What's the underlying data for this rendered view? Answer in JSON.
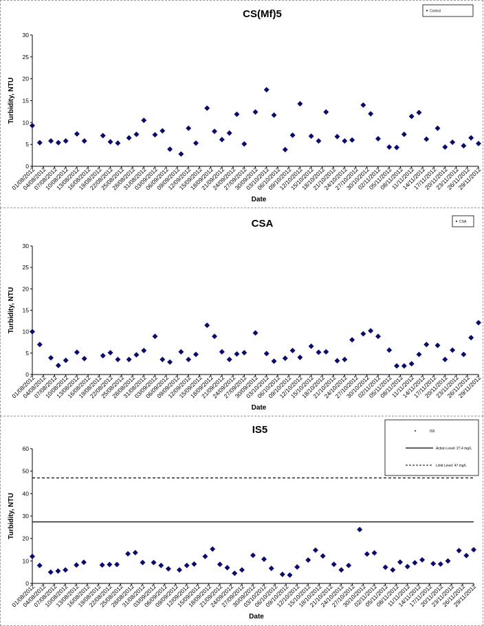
{
  "colors": {
    "marker": "#0b0b6e",
    "axis": "#000000",
    "frame": "#9a9a9a"
  },
  "chart_data": [
    {
      "type": "scatter",
      "title": "CS(Mf)5",
      "xlabel": "Date",
      "ylabel": "Turbidity, NTU",
      "ylim": [
        0,
        30
      ],
      "yticks": [
        0,
        5,
        10,
        15,
        20,
        25,
        30
      ],
      "legend": {
        "position": "top-right",
        "entries": [
          "Control"
        ]
      },
      "x_tick_labels": [
        "01/08/2012",
        "04/08/2012",
        "07/08/2012",
        "10/08/2012",
        "13/08/2012",
        "16/08/2012",
        "19/08/2012",
        "22/08/2012",
        "25/08/2012",
        "28/08/2012",
        "31/08/2012",
        "03/09/2012",
        "06/09/2012",
        "09/09/2012",
        "12/09/2012",
        "15/09/2012",
        "18/09/2012",
        "21/09/2012",
        "24/09/2012",
        "27/09/2012",
        "30/09/2012",
        "03/10/2012",
        "06/10/2012",
        "09/10/2012",
        "12/10/2012",
        "15/10/2012",
        "18/10/2012",
        "21/10/2012",
        "24/10/2012",
        "27/10/2012",
        "30/10/2012",
        "02/11/2012",
        "05/11/2012",
        "08/11/2012",
        "11/11/2012",
        "14/11/2012",
        "17/11/2012",
        "20/11/2012",
        "23/11/2012",
        "26/11/2012",
        "29/11/2012"
      ],
      "series": [
        {
          "name": "Control",
          "x": [
            "01/08/2012",
            "03/08/2012",
            "06/08/2012",
            "08/08/2012",
            "10/08/2012",
            "13/08/2012",
            "15/08/2012",
            "20/08/2012",
            "22/08/2012",
            "24/08/2012",
            "27/08/2012",
            "29/08/2012",
            "31/08/2012",
            "03/09/2012",
            "05/09/2012",
            "07/09/2012",
            "10/09/2012",
            "12/09/2012",
            "14/09/2012",
            "17/09/2012",
            "19/09/2012",
            "21/09/2012",
            "23/09/2012",
            "25/09/2012",
            "27/09/2012",
            "30/09/2012",
            "03/10/2012",
            "05/10/2012",
            "08/10/2012",
            "10/10/2012",
            "12/10/2012",
            "15/10/2012",
            "17/10/2012",
            "19/10/2012",
            "22/10/2012",
            "24/10/2012",
            "26/10/2012",
            "29/10/2012",
            "31/10/2012",
            "02/11/2012",
            "05/11/2012",
            "07/11/2012",
            "09/11/2012",
            "11/11/2012",
            "13/11/2012",
            "15/11/2012",
            "18/11/2012",
            "20/11/2012",
            "22/11/2012",
            "25/11/2012",
            "27/11/2012",
            "29/11/2012"
          ],
          "y": [
            9.3,
            5.4,
            5.8,
            5.4,
            5.8,
            7.4,
            5.8,
            7.0,
            5.6,
            5.3,
            6.5,
            7.3,
            10.5,
            7.2,
            8.1,
            3.9,
            2.8,
            8.7,
            5.3,
            13.3,
            8.0,
            6.1,
            7.6,
            11.9,
            5.1,
            12.4,
            17.5,
            11.7,
            3.8,
            7.1,
            14.3,
            6.9,
            5.8,
            12.4,
            6.8,
            5.8,
            6.0,
            14.0,
            12.0,
            6.3,
            4.4,
            4.3,
            7.3,
            11.4,
            12.3,
            6.2,
            8.7,
            4.4,
            5.5,
            4.7,
            6.5,
            5.2
          ]
        }
      ]
    },
    {
      "type": "scatter",
      "title": "CSA",
      "xlabel": "Date",
      "ylabel": "Turbidity, NTU",
      "ylim": [
        0,
        30
      ],
      "yticks": [
        0,
        5,
        10,
        15,
        20,
        25,
        30
      ],
      "legend": {
        "position": "top-right",
        "entries": [
          "CSA"
        ]
      },
      "x_tick_labels": [
        "01/08/2012",
        "04/08/2012",
        "07/08/2012",
        "10/08/2012",
        "13/08/2012",
        "16/08/2012",
        "19/08/2012",
        "22/08/2012",
        "25/08/2012",
        "28/08/2012",
        "31/08/2012",
        "03/09/2012",
        "06/09/2012",
        "09/09/2012",
        "12/09/2012",
        "15/09/2012",
        "18/09/2012",
        "21/09/2012",
        "24/09/2012",
        "27/09/2012",
        "30/09/2012",
        "03/10/2012",
        "06/10/2012",
        "09/10/2012",
        "12/10/2012",
        "15/10/2012",
        "18/10/2012",
        "21/10/2012",
        "24/10/2012",
        "27/10/2012",
        "30/10/2012",
        "02/11/2012",
        "05/11/2012",
        "08/11/2012",
        "11/11/2012",
        "14/11/2012",
        "17/11/2012",
        "20/11/2012",
        "23/11/2012",
        "26/11/2012",
        "29/11/2012"
      ],
      "series": [
        {
          "name": "CSA",
          "x": [
            "01/08/2012",
            "03/08/2012",
            "06/08/2012",
            "08/08/2012",
            "10/08/2012",
            "13/08/2012",
            "15/08/2012",
            "20/08/2012",
            "22/08/2012",
            "24/08/2012",
            "27/08/2012",
            "29/08/2012",
            "31/08/2012",
            "03/09/2012",
            "05/09/2012",
            "07/09/2012",
            "10/09/2012",
            "12/09/2012",
            "14/09/2012",
            "17/09/2012",
            "19/09/2012",
            "21/09/2012",
            "23/09/2012",
            "25/09/2012",
            "27/09/2012",
            "30/09/2012",
            "03/10/2012",
            "05/10/2012",
            "08/10/2012",
            "10/10/2012",
            "12/10/2012",
            "15/10/2012",
            "17/10/2012",
            "19/10/2012",
            "22/10/2012",
            "24/10/2012",
            "26/10/2012",
            "29/10/2012",
            "31/10/2012",
            "02/11/2012",
            "05/11/2012",
            "07/11/2012",
            "09/11/2012",
            "11/11/2012",
            "13/11/2012",
            "15/11/2012",
            "18/11/2012",
            "20/11/2012",
            "22/11/2012",
            "25/11/2012",
            "27/11/2012",
            "29/11/2012"
          ],
          "y": [
            10.0,
            7.0,
            3.9,
            2.1,
            3.3,
            5.2,
            3.7,
            4.4,
            5.1,
            3.5,
            3.5,
            4.6,
            5.6,
            8.9,
            3.5,
            2.9,
            5.3,
            3.5,
            4.7,
            11.5,
            8.9,
            5.3,
            3.5,
            4.8,
            5.1,
            9.7,
            4.9,
            3.1,
            3.8,
            5.6,
            4.0,
            6.6,
            5.2,
            5.3,
            3.2,
            3.5,
            8.1,
            9.5,
            10.2,
            8.9,
            5.7,
            2.0,
            2.0,
            2.5,
            4.7,
            7.0,
            6.8,
            3.5,
            5.7,
            4.7,
            8.6,
            12.1
          ]
        }
      ]
    },
    {
      "type": "scatter",
      "title": "IS5",
      "xlabel": "Date",
      "ylabel": "Turbidity, NTU",
      "ylim": [
        0,
        60
      ],
      "yticks": [
        0,
        10,
        20,
        30,
        40,
        50,
        60
      ],
      "legend": {
        "position": "top-right",
        "entries": [
          "IS5",
          "Action Level: 27.4 mg/L",
          "Limit Level: 47 mg/L"
        ]
      },
      "reference_lines": [
        {
          "name": "Action Level: 27.4 mg/L",
          "y": 27.4,
          "style": "solid"
        },
        {
          "name": "Limit Level: 47 mg/L",
          "y": 47,
          "style": "dashed"
        }
      ],
      "x_tick_labels": [
        "01/08/2012",
        "04/08/2012",
        "07/08/2012",
        "10/08/2012",
        "13/08/2012",
        "16/08/2012",
        "19/08/2012",
        "22/08/2012",
        "25/08/2012",
        "28/08/2012",
        "31/08/2012",
        "03/09/2012",
        "06/09/2012",
        "09/09/2012",
        "12/09/2012",
        "15/09/2012",
        "18/09/2012",
        "21/09/2012",
        "24/09/2012",
        "27/09/2012",
        "30/09/2012",
        "03/10/2012",
        "06/10/2012",
        "09/10/2012",
        "12/10/2012",
        "15/10/2012",
        "18/10/2012",
        "21/10/2012",
        "24/10/2012",
        "27/10/2012",
        "30/10/2012",
        "02/11/2012",
        "05/11/2012",
        "08/11/2012",
        "11/11/2012",
        "14/11/2012",
        "17/11/2012",
        "20/11/2012",
        "23/11/2012",
        "26/11/2012",
        "29/11/2012"
      ],
      "series": [
        {
          "name": "IS5",
          "x": [
            "01/08/2012",
            "03/08/2012",
            "06/08/2012",
            "08/08/2012",
            "10/08/2012",
            "13/08/2012",
            "15/08/2012",
            "20/08/2012",
            "22/08/2012",
            "24/08/2012",
            "27/08/2012",
            "29/08/2012",
            "31/08/2012",
            "03/09/2012",
            "05/09/2012",
            "07/09/2012",
            "10/09/2012",
            "12/09/2012",
            "14/09/2012",
            "17/09/2012",
            "19/09/2012",
            "21/09/2012",
            "23/09/2012",
            "25/09/2012",
            "27/09/2012",
            "30/09/2012",
            "03/10/2012",
            "05/10/2012",
            "08/10/2012",
            "10/10/2012",
            "12/10/2012",
            "15/10/2012",
            "17/10/2012",
            "19/10/2012",
            "22/10/2012",
            "24/10/2012",
            "26/10/2012",
            "29/10/2012",
            "31/10/2012",
            "02/11/2012",
            "05/11/2012",
            "07/11/2012",
            "09/11/2012",
            "11/11/2012",
            "13/11/2012",
            "15/11/2012",
            "18/11/2012",
            "20/11/2012",
            "22/11/2012",
            "25/11/2012",
            "27/11/2012",
            "29/11/2012"
          ],
          "y": [
            12.0,
            8.0,
            5.0,
            5.5,
            6.0,
            8.2,
            9.4,
            8.2,
            8.4,
            8.4,
            13.2,
            13.7,
            9.3,
            9.3,
            8.0,
            6.5,
            6.0,
            8.0,
            8.6,
            12.0,
            15.3,
            8.5,
            7.0,
            4.5,
            6.0,
            12.5,
            10.8,
            6.7,
            4.0,
            3.7,
            7.3,
            10.4,
            14.8,
            12.2,
            8.5,
            6.0,
            8.0,
            24.0,
            13.1,
            13.6,
            7.2,
            6.0,
            9.5,
            7.5,
            9.2,
            10.5,
            8.8,
            8.6,
            10.0,
            14.6,
            12.4,
            15.0
          ]
        }
      ]
    }
  ]
}
